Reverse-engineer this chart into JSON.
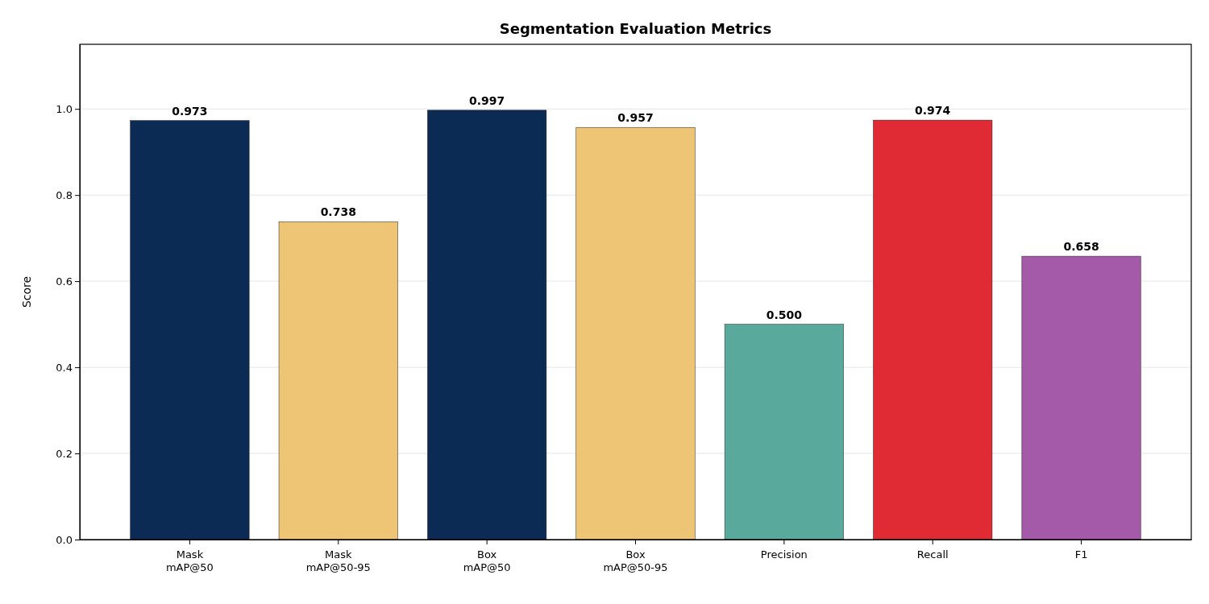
{
  "chart_data": {
    "type": "bar",
    "title": "Segmentation Evaluation Metrics",
    "ylabel": "Score",
    "categories": [
      "Mask\nmAP@50",
      "Mask\nmAP@50-95",
      "Box\nmAP@50",
      "Box\nmAP@50-95",
      "Precision",
      "Recall",
      "F1"
    ],
    "values": [
      0.973,
      0.738,
      0.997,
      0.957,
      0.5,
      0.974,
      0.658
    ],
    "colors": [
      "#0b2a54",
      "#eec574",
      "#0b2a54",
      "#eec574",
      "#59a99d",
      "#e02b35",
      "#a45aa8"
    ],
    "ylim": [
      0,
      1.15
    ],
    "yticks": [
      {
        "value": 0,
        "label": "0.0"
      },
      {
        "value": 0.2,
        "label": "0.2"
      },
      {
        "value": 0.4,
        "label": "0.4"
      },
      {
        "value": 0.6,
        "label": "0.6"
      },
      {
        "value": 0.8,
        "label": "0.8"
      },
      {
        "value": 1,
        "label": "1.0"
      }
    ],
    "grid": "y",
    "value_labels": [
      "0.973",
      "0.738",
      "0.997",
      "0.957",
      "0.500",
      "0.974",
      "0.658"
    ]
  }
}
